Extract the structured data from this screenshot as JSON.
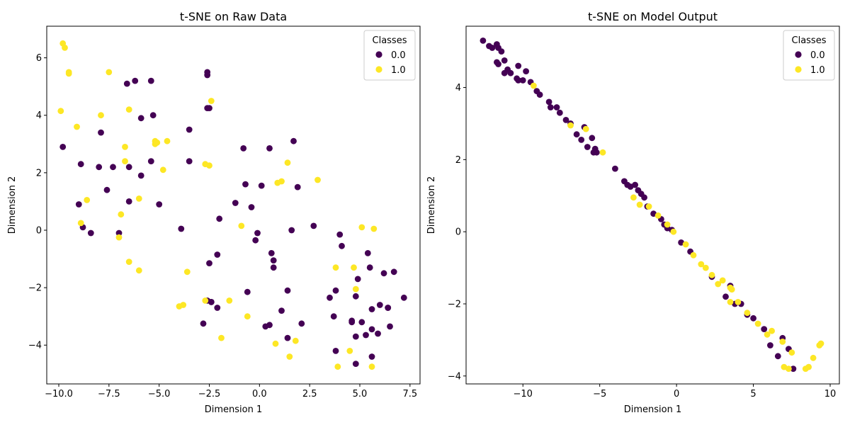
{
  "colors": {
    "class_0": "#440154",
    "class_1": "#fde725",
    "axis": "#000000",
    "legend_border": "#cccccc"
  },
  "chart_data": [
    {
      "type": "scatter",
      "title": "t-SNE on Raw Data",
      "xlabel": "Dimension 1",
      "ylabel": "Dimension 2",
      "xlim": [
        -10.6,
        8.0
      ],
      "ylim": [
        -5.35,
        7.1
      ],
      "xticks": [
        -10.0,
        -7.5,
        -5.0,
        -2.5,
        0.0,
        2.5,
        5.0,
        7.5
      ],
      "xtick_labels": [
        "−10.0",
        "−7.5",
        "−5.0",
        "−2.5",
        "0.0",
        "2.5",
        "5.0",
        "7.5"
      ],
      "yticks": [
        -4,
        -2,
        0,
        2,
        4,
        6
      ],
      "ytick_labels": [
        "−4",
        "−2",
        "0",
        "2",
        "4",
        "6"
      ],
      "grid": false,
      "legend": {
        "title": "Classes",
        "placement": "top-right",
        "entries": [
          "0.0",
          "1.0"
        ]
      },
      "series": [
        {
          "name": "0.0",
          "x": [
            -9.8,
            -8.9,
            -9.0,
            -8.8,
            -8.4,
            -7.9,
            -8.0,
            -7.6,
            -7.3,
            -7.0,
            -6.6,
            -6.5,
            -6.5,
            -6.2,
            -5.9,
            -5.9,
            -5.4,
            -5.3,
            -5.4,
            -5.0,
            -3.9,
            -3.5,
            -3.5,
            -2.6,
            -2.6,
            -2.5,
            -2.6,
            -2.5,
            -2.1,
            -2.0,
            -1.2,
            -0.8,
            -0.7,
            -0.4,
            -0.2,
            -0.1,
            0.1,
            0.5,
            0.6,
            0.7,
            0.7,
            1.7,
            1.9,
            1.6,
            2.7,
            4.0,
            4.1,
            5.4,
            4.9,
            4.8,
            5.5,
            6.2,
            6.7,
            7.2,
            3.8,
            3.5,
            3.7,
            4.6,
            4.6,
            5.1,
            5.6,
            5.6,
            6.0,
            6.4,
            6.5,
            5.9,
            5.3,
            4.8,
            3.8,
            4.8,
            5.6,
            6.4,
            1.4,
            1.1,
            2.1,
            0.5,
            0.3,
            1.4,
            -0.6,
            -2.1,
            -2.4,
            -2.4,
            -2.6,
            -2.8
          ],
          "y": [
            2.9,
            2.3,
            0.9,
            0.1,
            -0.1,
            3.4,
            2.2,
            1.4,
            2.2,
            -0.1,
            5.1,
            2.2,
            1.0,
            5.2,
            3.9,
            1.9,
            5.2,
            4.0,
            2.4,
            0.9,
            0.05,
            3.5,
            2.4,
            5.4,
            5.5,
            4.25,
            4.25,
            -1.15,
            -0.85,
            0.4,
            0.95,
            2.85,
            1.6,
            0.8,
            -0.35,
            -0.1,
            1.55,
            2.85,
            -0.8,
            -1.05,
            -1.3,
            3.1,
            1.5,
            0.0,
            0.15,
            -0.15,
            -0.55,
            -0.8,
            -1.7,
            -2.3,
            -1.3,
            -1.5,
            -1.45,
            -2.35,
            -2.1,
            -2.35,
            -3.0,
            -3.15,
            -3.2,
            -3.2,
            -2.75,
            -3.45,
            -2.6,
            -2.7,
            -3.35,
            -3.6,
            -3.65,
            -3.7,
            -4.2,
            -4.65,
            -4.4,
            -2.7,
            -2.1,
            -2.8,
            -3.25,
            -3.3,
            -3.35,
            -3.75,
            -2.15,
            -2.7,
            -2.5,
            -2.5,
            -2.45,
            -3.25
          ]
        },
        {
          "name": "1.0",
          "x": [
            -9.8,
            -9.7,
            -9.5,
            -9.5,
            -9.9,
            -9.1,
            -7.9,
            -7.5,
            -6.5,
            -6.7,
            -6.7,
            -8.6,
            -8.9,
            -6.9,
            -7.0,
            -6.5,
            -6.0,
            -6.0,
            -5.2,
            -5.2,
            -5.1,
            -4.6,
            -4.8,
            -2.4,
            -2.7,
            -2.5,
            -2.7,
            -3.6,
            -4.0,
            -3.8,
            -1.5,
            -1.9,
            -0.9,
            -0.6,
            0.9,
            1.1,
            1.4,
            2.9,
            5.1,
            5.7,
            3.8,
            4.7,
            4.8,
            4.5,
            1.8,
            0.8,
            1.5,
            3.9,
            5.6
          ],
          "y": [
            6.5,
            6.35,
            5.45,
            5.5,
            4.15,
            3.6,
            4.0,
            5.5,
            4.2,
            2.9,
            2.4,
            1.05,
            0.25,
            0.55,
            -0.25,
            -1.1,
            1.1,
            -1.4,
            3.0,
            3.1,
            3.05,
            3.1,
            2.1,
            4.5,
            2.3,
            2.25,
            -2.45,
            -1.45,
            -2.65,
            -2.6,
            -2.45,
            -3.75,
            0.15,
            -3.0,
            1.65,
            1.7,
            2.35,
            1.75,
            0.1,
            0.05,
            -1.3,
            -1.3,
            -2.05,
            -4.2,
            -3.85,
            -3.95,
            -4.4,
            -4.75,
            -4.75
          ]
        }
      ]
    },
    {
      "type": "scatter",
      "title": "t-SNE on Model Output",
      "xlabel": "Dimension 1",
      "ylabel": "Dimension 2",
      "xlim": [
        -13.7,
        10.6
      ],
      "ylim": [
        -4.22,
        5.7
      ],
      "xticks": [
        -10,
        -5,
        0,
        5,
        10
      ],
      "xtick_labels": [
        "−10",
        "−5",
        "0",
        "5",
        "10"
      ],
      "yticks": [
        -4,
        -2,
        0,
        2,
        4
      ],
      "ytick_labels": [
        "−4",
        "−2",
        "0",
        "2",
        "4"
      ],
      "grid": false,
      "legend": {
        "title": "Classes",
        "placement": "top-right",
        "entries": [
          "0.0",
          "1.0"
        ]
      },
      "series": [
        {
          "name": "0.0",
          "x": [
            -12.6,
            -12.2,
            -12.0,
            -11.7,
            -11.6,
            -11.4,
            -11.2,
            -11.7,
            -11.6,
            -11.0,
            -11.2,
            -10.8,
            -10.4,
            -10.3,
            -10.0,
            -10.3,
            -9.8,
            -9.5,
            -9.1,
            -8.9,
            -8.3,
            -8.2,
            -7.8,
            -7.6,
            -7.2,
            -6.9,
            -6.5,
            -6.2,
            -6.0,
            -5.8,
            -5.5,
            -5.3,
            -5.2,
            -5.4,
            -4.0,
            -3.4,
            -3.2,
            -3.0,
            -2.7,
            -2.5,
            -2.3,
            -2.1,
            -1.9,
            -1.5,
            -1.0,
            -0.8,
            -0.6,
            -0.3,
            0.3,
            0.9,
            2.3,
            3.2,
            3.5,
            3.8,
            4.2,
            4.6,
            5.0,
            5.7,
            6.1,
            6.6,
            6.9,
            7.3,
            7.6
          ],
          "y": [
            5.3,
            5.15,
            5.1,
            5.2,
            5.1,
            5.0,
            4.75,
            4.7,
            4.65,
            4.5,
            4.4,
            4.4,
            4.25,
            4.2,
            4.2,
            4.6,
            4.45,
            4.15,
            3.9,
            3.8,
            3.6,
            3.45,
            3.45,
            3.3,
            3.1,
            3.0,
            2.7,
            2.55,
            2.9,
            2.35,
            2.6,
            2.3,
            2.2,
            2.2,
            1.75,
            1.4,
            1.3,
            1.25,
            1.3,
            1.15,
            1.05,
            0.95,
            0.7,
            0.5,
            0.35,
            0.2,
            0.1,
            0.05,
            -0.3,
            -0.55,
            -1.25,
            -1.8,
            -1.5,
            -2.0,
            -2.0,
            -2.3,
            -2.4,
            -2.7,
            -3.15,
            -3.45,
            -2.95,
            -3.25,
            -3.8
          ]
        },
        {
          "name": "1.0",
          "x": [
            -9.3,
            -6.9,
            -5.9,
            -4.8,
            -2.8,
            -2.4,
            -1.8,
            -1.2,
            -0.6,
            -0.2,
            0.6,
            1.1,
            1.6,
            1.9,
            2.3,
            2.7,
            3.0,
            3.5,
            3.6,
            3.5,
            4.0,
            4.6,
            5.3,
            5.9,
            6.2,
            6.9,
            7.0,
            7.3,
            7.5,
            8.4,
            8.6,
            8.9,
            9.3,
            9.4
          ],
          "y": [
            4.05,
            2.95,
            2.85,
            2.2,
            0.95,
            0.75,
            0.7,
            0.45,
            0.2,
            0.0,
            -0.35,
            -0.65,
            -0.9,
            -1.0,
            -1.2,
            -1.45,
            -1.35,
            -1.55,
            -1.6,
            -1.95,
            -1.95,
            -2.25,
            -2.55,
            -2.85,
            -2.75,
            -3.05,
            -3.75,
            -3.8,
            -3.35,
            -3.8,
            -3.75,
            -3.5,
            -3.15,
            -3.1
          ]
        }
      ]
    }
  ]
}
